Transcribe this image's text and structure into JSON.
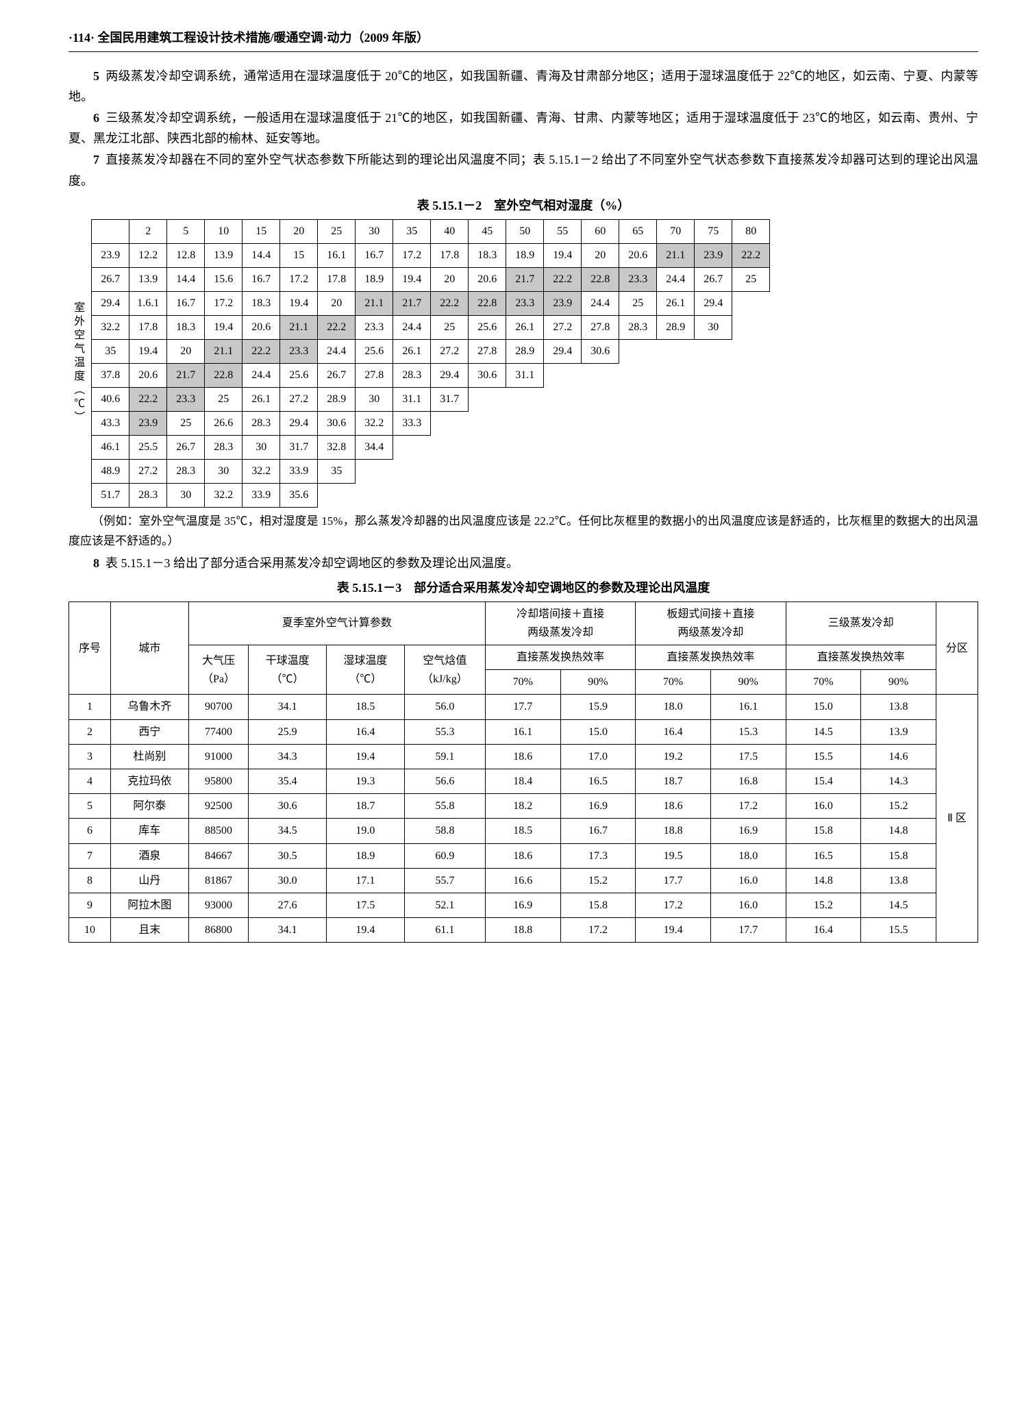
{
  "header": "·114·  全国民用建筑工程设计技术措施/暖通空调·动力（2009 年版）",
  "paragraphs": [
    {
      "num": "5",
      "text": "两级蒸发冷却空调系统，通常适用在湿球温度低于 20℃的地区，如我国新疆、青海及甘肃部分地区；适用于湿球温度低于 22℃的地区，如云南、宁夏、内蒙等地。"
    },
    {
      "num": "6",
      "text": "三级蒸发冷却空调系统，一般适用在湿球温度低于 21℃的地区，如我国新疆、青海、甘肃、内蒙等地区；适用于湿球温度低于 23℃的地区，如云南、贵州、宁夏、黑龙江北部、陕西北部的榆林、延安等地。"
    },
    {
      "num": "7",
      "text": "直接蒸发冷却器在不同的室外空气状态参数下所能达到的理论出风温度不同；表 5.15.1－2 给出了不同室外空气状态参数下直接蒸发冷却器可达到的理论出风温度。"
    }
  ],
  "table1": {
    "title": "表 5.15.1－2　室外空气相对湿度（%）",
    "side_label": "室外空气温度（℃）",
    "col_headers": [
      "2",
      "5",
      "10",
      "15",
      "20",
      "25",
      "30",
      "35",
      "40",
      "45",
      "50",
      "55",
      "60",
      "65",
      "70",
      "75",
      "80"
    ],
    "rows": [
      {
        "label": "23.9",
        "cells": [
          "12.2",
          "12.8",
          "13.9",
          "14.4",
          "15",
          "16.1",
          "16.7",
          "17.2",
          "17.8",
          "18.3",
          "18.9",
          "19.4",
          "20",
          "20.6",
          {
            "v": "21.1",
            "s": 1
          },
          {
            "v": "23.9",
            "s": 1
          },
          {
            "v": "22.2",
            "s": 1
          }
        ]
      },
      {
        "label": "26.7",
        "cells": [
          "13.9",
          "14.4",
          "15.6",
          "16.7",
          "17.2",
          "17.8",
          "18.9",
          "19.4",
          "20",
          "20.6",
          {
            "v": "21.7",
            "s": 1
          },
          {
            "v": "22.2",
            "s": 1
          },
          {
            "v": "22.8",
            "s": 1
          },
          {
            "v": "23.3",
            "s": 1
          },
          "24.4",
          "26.7",
          "25"
        ]
      },
      {
        "label": "29.4",
        "cells": [
          "1.6.1",
          "16.7",
          "17.2",
          "18.3",
          "19.4",
          "20",
          {
            "v": "21.1",
            "s": 1
          },
          {
            "v": "21.7",
            "s": 1
          },
          {
            "v": "22.2",
            "s": 1
          },
          {
            "v": "22.8",
            "s": 1
          },
          {
            "v": "23.3",
            "s": 1
          },
          {
            "v": "23.9",
            "s": 1
          },
          "24.4",
          "25",
          "26.1",
          "29.4"
        ]
      },
      {
        "label": "32.2",
        "cells": [
          "17.8",
          "18.3",
          "19.4",
          "20.6",
          {
            "v": "21.1",
            "s": 1
          },
          {
            "v": "22.2",
            "s": 1
          },
          "23.3",
          "24.4",
          "25",
          "25.6",
          "26.1",
          "27.2",
          "27.8",
          "28.3",
          "28.9",
          "30"
        ]
      },
      {
        "label": "35",
        "cells": [
          "19.4",
          "20",
          {
            "v": "21.1",
            "s": 1
          },
          {
            "v": "22.2",
            "s": 1
          },
          {
            "v": "23.3",
            "s": 1
          },
          "24.4",
          "25.6",
          "26.1",
          "27.2",
          "27.8",
          "28.9",
          "29.4",
          "30.6"
        ]
      },
      {
        "label": "37.8",
        "cells": [
          "20.6",
          {
            "v": "21.7",
            "s": 1
          },
          {
            "v": "22.8",
            "s": 1
          },
          "24.4",
          "25.6",
          "26.7",
          "27.8",
          "28.3",
          "29.4",
          "30.6",
          "31.1"
        ]
      },
      {
        "label": "40.6",
        "cells": [
          {
            "v": "22.2",
            "s": 1
          },
          {
            "v": "23.3",
            "s": 1
          },
          "25",
          "26.1",
          "27.2",
          "28.9",
          "30",
          "31.1",
          "31.7"
        ]
      },
      {
        "label": "43.3",
        "cells": [
          {
            "v": "23.9",
            "s": 1
          },
          "25",
          "26.6",
          "28.3",
          "29.4",
          "30.6",
          "32.2",
          "33.3"
        ]
      },
      {
        "label": "46.1",
        "cells": [
          "25.5",
          "26.7",
          "28.3",
          "30",
          "31.7",
          "32.8",
          "34.4"
        ]
      },
      {
        "label": "48.9",
        "cells": [
          "27.2",
          "28.3",
          "30",
          "32.2",
          "33.9",
          "35"
        ]
      },
      {
        "label": "51.7",
        "cells": [
          "28.3",
          "30",
          "32.2",
          "33.9",
          "35.6"
        ]
      }
    ]
  },
  "note": "（例如：室外空气温度是 35℃，相对湿度是 15%，那么蒸发冷却器的出风温度应该是 22.2℃。任何比灰框里的数据小的出风温度应该是舒适的，比灰框里的数据大的出风温度应该是不舒适的。）",
  "para8": {
    "num": "8",
    "text": "表 5.15.1－3 给出了部分适合采用蒸发冷却空调地区的参数及理论出风温度。"
  },
  "table2": {
    "title": "表 5.15.1－3　部分适合采用蒸发冷却空调地区的参数及理论出风温度",
    "head": {
      "seq": "序号",
      "city": "城市",
      "summer": "夏季室外空气计算参数",
      "two_stage": "冷却塔间接＋直接\n两级蒸发冷却",
      "two_stage2": "板翅式间接＋直接\n两级蒸发冷却",
      "three_stage": "三级蒸发冷却",
      "zone": "分区",
      "pressure": "大气压\n（Pa）",
      "drybulb": "干球温度\n（℃）",
      "wetbulb": "湿球温度\n（℃）",
      "enthalpy": "空气焓值\n（kJ/kg）",
      "eff": "直接蒸发换热效率",
      "p70": "70%",
      "p90": "90%"
    },
    "zone_label": "Ⅱ 区",
    "rows": [
      {
        "n": "1",
        "city": "乌鲁木齐",
        "p": "90700",
        "db": "34.1",
        "wb": "18.5",
        "h": "56.0",
        "a70": "17.7",
        "a90": "15.9",
        "b70": "18.0",
        "b90": "16.1",
        "c70": "15.0",
        "c90": "13.8"
      },
      {
        "n": "2",
        "city": "西宁",
        "p": "77400",
        "db": "25.9",
        "wb": "16.4",
        "h": "55.3",
        "a70": "16.1",
        "a90": "15.0",
        "b70": "16.4",
        "b90": "15.3",
        "c70": "14.5",
        "c90": "13.9"
      },
      {
        "n": "3",
        "city": "杜尚别",
        "p": "91000",
        "db": "34.3",
        "wb": "19.4",
        "h": "59.1",
        "a70": "18.6",
        "a90": "17.0",
        "b70": "19.2",
        "b90": "17.5",
        "c70": "15.5",
        "c90": "14.6"
      },
      {
        "n": "4",
        "city": "克拉玛依",
        "p": "95800",
        "db": "35.4",
        "wb": "19.3",
        "h": "56.6",
        "a70": "18.4",
        "a90": "16.5",
        "b70": "18.7",
        "b90": "16.8",
        "c70": "15.4",
        "c90": "14.3"
      },
      {
        "n": "5",
        "city": "阿尔泰",
        "p": "92500",
        "db": "30.6",
        "wb": "18.7",
        "h": "55.8",
        "a70": "18.2",
        "a90": "16.9",
        "b70": "18.6",
        "b90": "17.2",
        "c70": "16.0",
        "c90": "15.2"
      },
      {
        "n": "6",
        "city": "库车",
        "p": "88500",
        "db": "34.5",
        "wb": "19.0",
        "h": "58.8",
        "a70": "18.5",
        "a90": "16.7",
        "b70": "18.8",
        "b90": "16.9",
        "c70": "15.8",
        "c90": "14.8"
      },
      {
        "n": "7",
        "city": "酒泉",
        "p": "84667",
        "db": "30.5",
        "wb": "18.9",
        "h": "60.9",
        "a70": "18.6",
        "a90": "17.3",
        "b70": "19.5",
        "b90": "18.0",
        "c70": "16.5",
        "c90": "15.8"
      },
      {
        "n": "8",
        "city": "山丹",
        "p": "81867",
        "db": "30.0",
        "wb": "17.1",
        "h": "55.7",
        "a70": "16.6",
        "a90": "15.2",
        "b70": "17.7",
        "b90": "16.0",
        "c70": "14.8",
        "c90": "13.8"
      },
      {
        "n": "9",
        "city": "阿拉木图",
        "p": "93000",
        "db": "27.6",
        "wb": "17.5",
        "h": "52.1",
        "a70": "16.9",
        "a90": "15.8",
        "b70": "17.2",
        "b90": "16.0",
        "c70": "15.2",
        "c90": "14.5"
      },
      {
        "n": "10",
        "city": "且末",
        "p": "86800",
        "db": "34.1",
        "wb": "19.4",
        "h": "61.1",
        "a70": "18.8",
        "a90": "17.2",
        "b70": "19.4",
        "b90": "17.7",
        "c70": "16.4",
        "c90": "15.5"
      }
    ]
  }
}
